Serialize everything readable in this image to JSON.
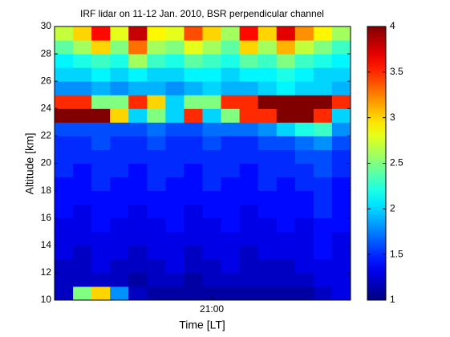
{
  "chart_data": {
    "type": "heatmap",
    "title": "IRF lidar on 11-12 Jan. 2010, BSR perpendicular channel",
    "x_label": "Time [LT]",
    "y_label": "Altitude [km]",
    "categories": [
      null,
      null,
      null,
      null,
      null,
      null,
      null,
      null,
      "21:00",
      null,
      null,
      null,
      null,
      null,
      null,
      null
    ],
    "y": [
      10.5,
      11.5,
      12.5,
      13.5,
      14.5,
      15.5,
      16.5,
      17.5,
      18.5,
      19.5,
      20.5,
      21.5,
      22.5,
      23.5,
      24.5,
      25.5,
      26.5,
      27.5,
      28.5,
      29.5
    ],
    "ylim": [
      10,
      30
    ],
    "yticks": [
      10,
      12,
      14,
      16,
      18,
      20,
      22,
      24,
      26,
      28,
      30
    ],
    "zlim": [
      1,
      4
    ],
    "zticks": [
      1,
      1.5,
      2,
      2.5,
      3,
      3.5,
      4
    ],
    "colormap": "jet",
    "z": [
      [
        1.2,
        2.5,
        3.0,
        1.8,
        1.2,
        1.1,
        1.1,
        1.1,
        1.1,
        1.1,
        1.1,
        1.1,
        1.1,
        1.1,
        1.2,
        1.3
      ],
      [
        1.2,
        1.2,
        1.2,
        1.2,
        1.1,
        1.2,
        1.2,
        1.1,
        1.2,
        1.2,
        1.2,
        1.2,
        1.2,
        1.2,
        1.3,
        1.3
      ],
      [
        1.2,
        1.2,
        1.3,
        1.2,
        1.2,
        1.2,
        1.3,
        1.2,
        1.2,
        1.3,
        1.2,
        1.2,
        1.2,
        1.3,
        1.3,
        1.3
      ],
      [
        1.3,
        1.2,
        1.3,
        1.3,
        1.2,
        1.3,
        1.3,
        1.2,
        1.3,
        1.3,
        1.2,
        1.3,
        1.3,
        1.3,
        1.4,
        1.3
      ],
      [
        1.3,
        1.3,
        1.3,
        1.3,
        1.3,
        1.3,
        1.3,
        1.3,
        1.3,
        1.3,
        1.3,
        1.3,
        1.3,
        1.3,
        1.4,
        1.3
      ],
      [
        1.3,
        1.3,
        1.4,
        1.3,
        1.3,
        1.3,
        1.4,
        1.3,
        1.3,
        1.4,
        1.3,
        1.3,
        1.4,
        1.3,
        1.4,
        1.4
      ],
      [
        1.4,
        1.3,
        1.4,
        1.4,
        1.3,
        1.4,
        1.4,
        1.3,
        1.4,
        1.4,
        1.3,
        1.4,
        1.4,
        1.4,
        1.5,
        1.4
      ],
      [
        1.4,
        1.4,
        1.4,
        1.4,
        1.4,
        1.4,
        1.4,
        1.4,
        1.4,
        1.4,
        1.4,
        1.4,
        1.4,
        1.4,
        1.5,
        1.4
      ],
      [
        1.4,
        1.4,
        1.5,
        1.4,
        1.4,
        1.5,
        1.4,
        1.4,
        1.5,
        1.4,
        1.4,
        1.5,
        1.4,
        1.5,
        1.5,
        1.4
      ],
      [
        1.5,
        1.4,
        1.5,
        1.5,
        1.4,
        1.5,
        1.5,
        1.4,
        1.5,
        1.5,
        1.4,
        1.5,
        1.5,
        1.5,
        1.6,
        1.5
      ],
      [
        1.5,
        1.5,
        1.5,
        1.5,
        1.5,
        1.5,
        1.5,
        1.5,
        1.5,
        1.5,
        1.5,
        1.5,
        1.5,
        1.6,
        1.6,
        1.5
      ],
      [
        1.5,
        1.5,
        1.6,
        1.5,
        1.5,
        1.6,
        1.5,
        1.5,
        1.6,
        1.5,
        1.5,
        1.6,
        1.6,
        1.7,
        1.8,
        1.6
      ],
      [
        1.6,
        1.6,
        1.6,
        1.6,
        1.6,
        1.7,
        1.6,
        1.6,
        1.7,
        1.7,
        1.7,
        1.8,
        2.0,
        2.2,
        2.3,
        1.8
      ],
      [
        4,
        4,
        4,
        3,
        2,
        2.5,
        2,
        3.5,
        2,
        2.5,
        3.5,
        3.5,
        4,
        4,
        3.5,
        2
      ],
      [
        3.5,
        3.5,
        2.5,
        2.5,
        3.5,
        3,
        2,
        2.5,
        2.5,
        3.5,
        3.5,
        4,
        4,
        4,
        4,
        3.5
      ],
      [
        1.8,
        1.8,
        1.9,
        1.8,
        1.9,
        1.9,
        1.8,
        1.9,
        2.0,
        1.9,
        1.9,
        2.0,
        2.1,
        2.0,
        2.0,
        1.9
      ],
      [
        2.0,
        2.0,
        2.1,
        2.0,
        2.1,
        2.0,
        2.0,
        2.1,
        2.1,
        2.0,
        2.1,
        2.1,
        2.2,
        2.1,
        2.0,
        2.0
      ],
      [
        2.1,
        2.2,
        2.3,
        2.2,
        2.6,
        2.3,
        2.2,
        2.4,
        2.3,
        2.2,
        2.4,
        2.3,
        2.5,
        2.3,
        2.2,
        2.1
      ],
      [
        2.4,
        2.6,
        3.0,
        2.5,
        3.3,
        2.6,
        2.5,
        2.8,
        2.6,
        2.4,
        3.0,
        2.6,
        3.1,
        2.7,
        2.5,
        2.3
      ],
      [
        2.7,
        3.0,
        3.6,
        2.8,
        3.8,
        2.9,
        2.8,
        3.4,
        3.0,
        2.6,
        3.6,
        3.0,
        3.7,
        3.2,
        2.9,
        2.6
      ]
    ]
  }
}
